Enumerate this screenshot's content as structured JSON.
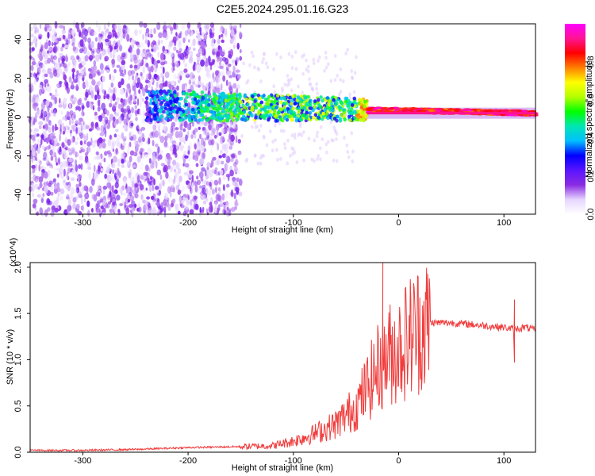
{
  "figure_title": "C2E5.2024.295.01.16.G23",
  "chart_data": [
    {
      "type": "heatmap",
      "title": "C2E5.2024.295.01.16.G23",
      "xlabel": "Height of straight line (km)",
      "ylabel": "Frequency (Hz)",
      "xlim": [
        -350,
        130
      ],
      "ylim": [
        -50,
        48
      ],
      "xticks": [
        -300,
        -200,
        -100,
        0,
        100
      ],
      "yticks": [
        -40,
        -20,
        0,
        20,
        40
      ],
      "colorbar": {
        "label": "Normalized spectral amplitude",
        "range": [
          0,
          1
        ],
        "ticks": [
          0.0,
          0.2,
          0.4,
          0.6,
          0.8
        ],
        "colormap": [
          "#ffffff",
          "#e6d5ff",
          "#8a2be2",
          "#5a14ff",
          "#0000ff",
          "#00bfff",
          "#00e6b4",
          "#00ff00",
          "#b4ff00",
          "#ffff00",
          "#ff8000",
          "#ff0000",
          "#ff1493",
          "#ff00ff"
        ]
      },
      "features": [
        {
          "name": "noise",
          "x": [
            -350,
            -150
          ],
          "amplitude": 0.15
        },
        {
          "name": "signal",
          "x": [
            -240,
            130
          ],
          "frequency_hz": [
            6,
            2
          ],
          "amplitude": [
            0.25,
            0.85
          ]
        }
      ]
    },
    {
      "type": "line",
      "xlabel": "Height of straight line (km)",
      "ylabel": "SNR (10 * v/v)",
      "y_multiplier": "(x10^4)",
      "xlim": [
        -350,
        130
      ],
      "ylim": [
        0,
        2.05
      ],
      "xticks": [
        -300,
        -200,
        -100,
        0,
        100
      ],
      "yticks": [
        0.0,
        0.5,
        1.0,
        1.5,
        2.0
      ],
      "series_color": "#f03c3c",
      "x": [
        -350,
        -300,
        -250,
        -200,
        -150,
        -120,
        -100,
        -80,
        -60,
        -40,
        -30,
        -20,
        -15,
        -10,
        0,
        10,
        20,
        30,
        50,
        70,
        90,
        100,
        110,
        120,
        130
      ],
      "y": [
        0.02,
        0.02,
        0.03,
        0.05,
        0.06,
        0.07,
        0.12,
        0.2,
        0.3,
        0.5,
        0.7,
        0.9,
        1.0,
        1.05,
        1.12,
        1.25,
        1.35,
        1.4,
        1.4,
        1.38,
        1.36,
        1.35,
        1.33,
        1.35,
        1.32
      ],
      "annotations": [
        {
          "x": -15,
          "y": 2.05,
          "note": "spike"
        },
        {
          "x": 110,
          "y": 1.65,
          "note": "spike"
        },
        {
          "x": 110,
          "y": 0.97,
          "note": "dip"
        }
      ]
    }
  ]
}
